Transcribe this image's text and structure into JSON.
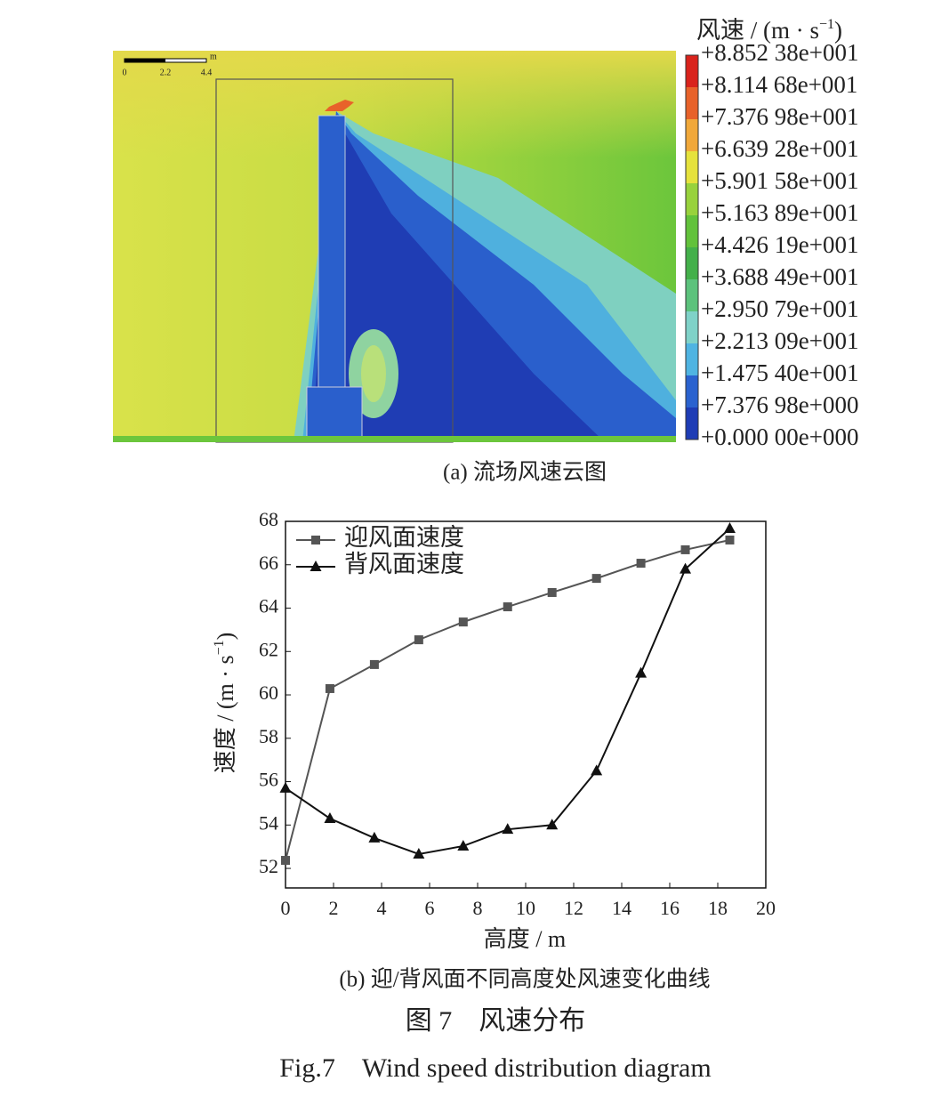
{
  "contour": {
    "scale_labels": [
      "0",
      "2.2",
      "4.4"
    ],
    "scale_unit": "m",
    "legend_title": "风速 / (m · s",
    "legend_title_sup": "−1",
    "legend_title_end": ")",
    "legend_labels": [
      "+8.852 38e+001",
      "+8.114 68e+001",
      "+7.376 98e+001",
      "+6.639 28e+001",
      "+5.901 58e+001",
      "+5.163 89e+001",
      "+4.426 19e+001",
      "+3.688 49e+001",
      "+2.950 79e+001",
      "+2.213 09e+001",
      "+1.475 40e+001",
      "+7.376 98e+000",
      "+0.000 00e+000"
    ],
    "legend_colors": [
      "#d9231c",
      "#e8622a",
      "#f1a83a",
      "#e6e23c",
      "#98d23c",
      "#62c23b",
      "#43b04a",
      "#5cc27c",
      "#7fd2c8",
      "#4fb4e2",
      "#2a62cf",
      "#1e3cb5"
    ],
    "caption": "(a) 流场风速云图"
  },
  "chart_data": {
    "type": "line",
    "caption": "(b) 迎/背风面不同高度处风速变化曲线",
    "x_label": "高度 / m",
    "y_label": "速度 / (m · s",
    "y_label_sup": "−1",
    "y_label_end": ")",
    "x": [
      0,
      1.85,
      3.7,
      5.55,
      7.4,
      9.25,
      11.1,
      12.95,
      14.8,
      16.65,
      18.5
    ],
    "series": [
      {
        "name": "迎风面速度",
        "color": "#555555",
        "marker": "square",
        "values": [
          52.37,
          60.29,
          61.4,
          62.54,
          63.36,
          64.06,
          64.72,
          65.37,
          66.07,
          66.69,
          67.14
        ]
      },
      {
        "name": "背风面速度",
        "color": "#111111",
        "marker": "triangle",
        "values": [
          55.7,
          54.3,
          53.4,
          52.66,
          53.03,
          53.8,
          54.0,
          56.5,
          61.0,
          65.8,
          67.67
        ]
      }
    ],
    "xlim": [
      0,
      20
    ],
    "ylim": [
      51.1,
      68
    ],
    "xticks": [
      0,
      2,
      4,
      6,
      8,
      10,
      12,
      14,
      16,
      18,
      20
    ],
    "yticks": [
      52,
      54,
      56,
      58,
      60,
      62,
      64,
      66,
      68
    ],
    "legend": "upper left"
  },
  "figure": {
    "title_cn": "图 7　风速分布",
    "title_en": "Fig.7　Wind speed distribution diagram"
  }
}
